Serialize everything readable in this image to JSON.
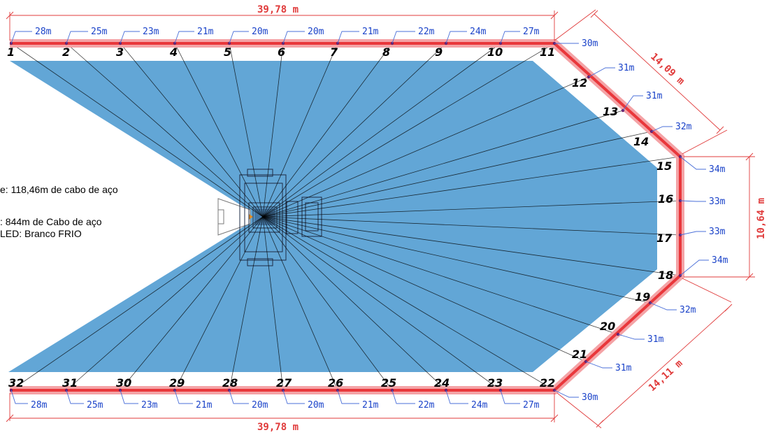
{
  "colors": {
    "fill": "#62A6D6",
    "cable": "#E9373B",
    "cable_glow": "#F4A3A6",
    "label_blue": "#1B43C9",
    "dim_red": "#E03B3B",
    "line": "#000000"
  },
  "legend": {
    "line1": "e: 118,46m de cabo de aço",
    "line2": ": 844m de Cabo de aço",
    "line3": "LED: Branco FRIO"
  },
  "dimensions": {
    "top_length": "39,78 m",
    "bottom_length": "39,78 m",
    "upper_diagonal": "14,09 m",
    "right_side": "10,64 m",
    "lower_diagonal": "14,11 m"
  },
  "anchors": [
    {
      "num": "1",
      "len": "28m"
    },
    {
      "num": "2",
      "len": "25m"
    },
    {
      "num": "3",
      "len": "23m"
    },
    {
      "num": "4",
      "len": "21m"
    },
    {
      "num": "5",
      "len": "20m"
    },
    {
      "num": "6",
      "len": "20m"
    },
    {
      "num": "7",
      "len": "21m"
    },
    {
      "num": "8",
      "len": "22m"
    },
    {
      "num": "9",
      "len": "24m"
    },
    {
      "num": "10",
      "len": "27m"
    },
    {
      "num": "11",
      "len": "30m"
    },
    {
      "num": "12",
      "len": "31m"
    },
    {
      "num": "13",
      "len": "31m"
    },
    {
      "num": "14",
      "len": "32m"
    },
    {
      "num": "15",
      "len": "34m"
    },
    {
      "num": "16",
      "len": "33m"
    },
    {
      "num": "17",
      "len": "33m"
    },
    {
      "num": "18",
      "len": "34m"
    },
    {
      "num": "19",
      "len": "32m"
    },
    {
      "num": "20",
      "len": "31m"
    },
    {
      "num": "21",
      "len": "31m"
    },
    {
      "num": "22",
      "len": "30m"
    },
    {
      "num": "23",
      "len": "27m"
    },
    {
      "num": "24",
      "len": "24m"
    },
    {
      "num": "25",
      "len": "22m"
    },
    {
      "num": "26",
      "len": "21m"
    },
    {
      "num": "27",
      "len": "20m"
    },
    {
      "num": "28",
      "len": "20m"
    },
    {
      "num": "29",
      "len": "21m"
    },
    {
      "num": "30",
      "len": "23m"
    },
    {
      "num": "31",
      "len": "25m"
    },
    {
      "num": "32",
      "len": "28m"
    }
  ]
}
